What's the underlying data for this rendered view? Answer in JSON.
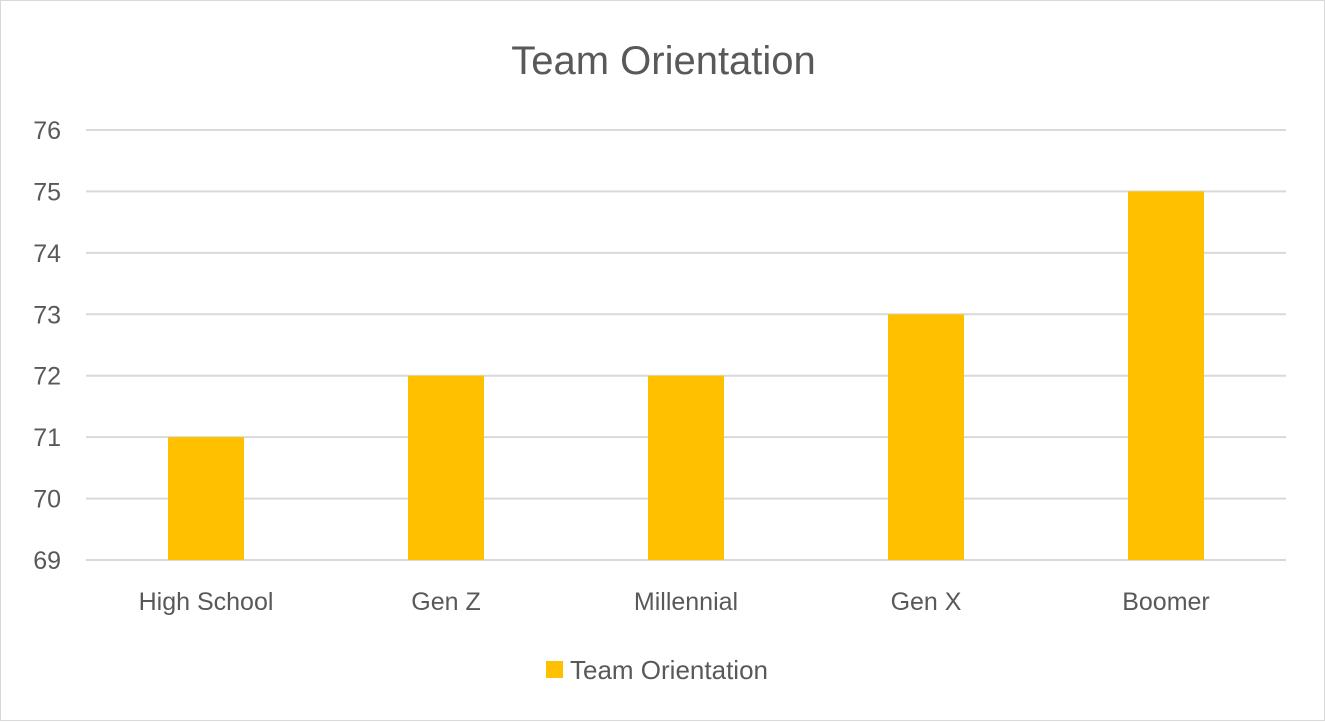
{
  "chart_data": {
    "type": "bar",
    "title": "Team Orientation",
    "categories": [
      "High School",
      "Gen Z",
      "Millennial",
      "Gen X",
      "Boomer"
    ],
    "series": [
      {
        "name": "Team Orientation",
        "values": [
          71,
          72,
          72,
          73,
          75
        ],
        "color": "#FFC000"
      }
    ],
    "ylim": [
      69,
      76
    ],
    "yticks": [
      69,
      70,
      71,
      72,
      73,
      74,
      75,
      76
    ],
    "grid": true,
    "legend_position": "bottom",
    "gridline_color": "#d9d9d9",
    "text_color": "#595959"
  }
}
